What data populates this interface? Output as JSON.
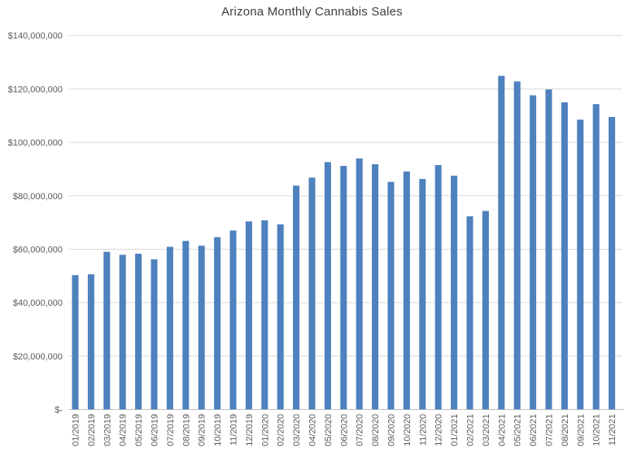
{
  "chart_data": {
    "type": "bar",
    "title": "Arizona Monthly Cannabis Sales",
    "xlabel": "",
    "ylabel": "",
    "categories": [
      "01/2019",
      "02/2019",
      "03/2019",
      "04/2019",
      "05/2019",
      "06/2019",
      "07/2019",
      "08/2019",
      "09/2019",
      "10/2019",
      "11/2019",
      "12/2019",
      "01/2020",
      "02/2020",
      "03/2020",
      "04/2020",
      "05/2020",
      "06/2020",
      "07/2020",
      "08/2020",
      "09/2020",
      "10/2020",
      "11/2020",
      "12/2020",
      "01/2021",
      "02/2021",
      "03/2021",
      "04/2021",
      "05/2021",
      "06/2021",
      "07/2021",
      "08/2021",
      "09/2021",
      "10/2021",
      "11/2021"
    ],
    "values": [
      50300000,
      50600000,
      59000000,
      57900000,
      58300000,
      56200000,
      60900000,
      63100000,
      61300000,
      64500000,
      67000000,
      70400000,
      70800000,
      69300000,
      83800000,
      86800000,
      92600000,
      91200000,
      94000000,
      91800000,
      85200000,
      89100000,
      86300000,
      91500000,
      87500000,
      72300000,
      74300000,
      124900000,
      122800000,
      117600000,
      119800000,
      115000000,
      108500000,
      114300000,
      109500000
    ],
    "ylim": [
      0,
      140000000
    ],
    "ytick_interval": 20000000,
    "ytick_labels": [
      "$-",
      "$20,000,000",
      "$40,000,000",
      "$60,000,000",
      "$80,000,000",
      "$100,000,000",
      "$120,000,000",
      "$140,000,000"
    ],
    "grid": true,
    "legend": false,
    "colors": {
      "bar": "#4E81BD",
      "gridline": "#D9D9D9",
      "axis_line": "#BFBFBF",
      "tick_label": "#595959",
      "title": "#404040",
      "background": "#FFFFFF"
    }
  }
}
